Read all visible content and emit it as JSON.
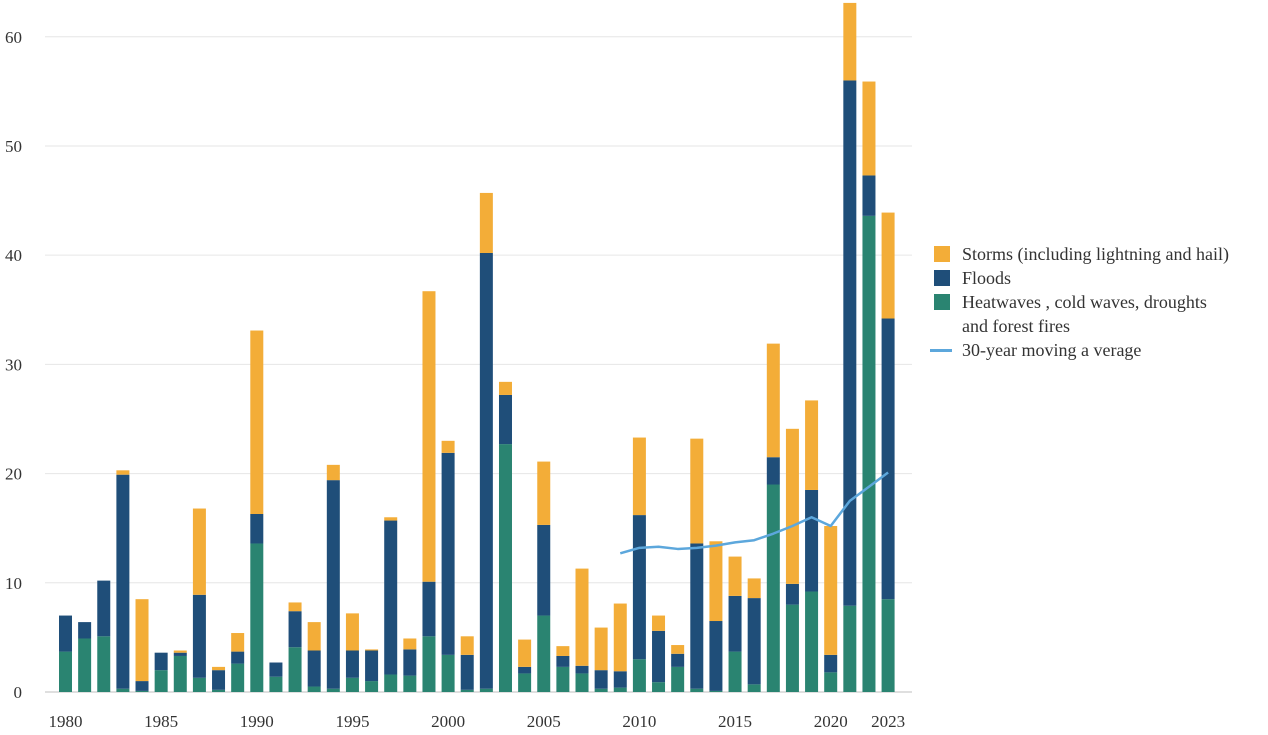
{
  "chart_data": {
    "type": "bar",
    "stacked": true,
    "ylim": [
      0,
      63
    ],
    "yticks": [
      0,
      10,
      20,
      30,
      40,
      50,
      60
    ],
    "x_tick_labels": [
      "1980",
      "1985",
      "1990",
      "1995",
      "2000",
      "2005",
      "2010",
      "2015",
      "2020",
      "2023"
    ],
    "years": [
      1980,
      1981,
      1982,
      1983,
      1984,
      1985,
      1986,
      1987,
      1988,
      1989,
      1990,
      1991,
      1992,
      1993,
      1994,
      1995,
      1996,
      1997,
      1998,
      1999,
      2000,
      2001,
      2002,
      2003,
      2004,
      2005,
      2006,
      2007,
      2008,
      2009,
      2010,
      2011,
      2012,
      2013,
      2014,
      2015,
      2016,
      2017,
      2018,
      2019,
      2020,
      2021,
      2022,
      2023
    ],
    "series": [
      {
        "key": "heat",
        "color": "#2a8471",
        "values": [
          3.7,
          4.9,
          5.1,
          0.3,
          0.1,
          2.0,
          3.3,
          1.3,
          0.2,
          2.6,
          13.6,
          1.4,
          4.1,
          0.5,
          0.3,
          1.3,
          1.0,
          1.6,
          1.5,
          5.1,
          3.4,
          0.2,
          0.3,
          22.7,
          1.7,
          7.0,
          2.3,
          1.7,
          0.3,
          0.4,
          3.0,
          0.9,
          2.3,
          0.3,
          0.1,
          3.7,
          0.7,
          19.0,
          8.0,
          9.2,
          1.8,
          7.9,
          43.6,
          8.5
        ]
      },
      {
        "key": "floods",
        "color": "#1f4e79",
        "values": [
          3.3,
          1.5,
          5.1,
          19.6,
          0.9,
          1.6,
          0.3,
          7.6,
          1.8,
          1.1,
          2.7,
          1.3,
          3.3,
          3.3,
          19.1,
          2.5,
          2.8,
          14.1,
          2.4,
          5.0,
          18.5,
          3.2,
          39.9,
          4.5,
          0.6,
          8.3,
          1.0,
          0.7,
          1.7,
          1.5,
          13.2,
          4.7,
          1.2,
          13.3,
          6.4,
          5.1,
          7.9,
          2.5,
          1.9,
          9.3,
          1.6,
          48.1,
          3.7,
          25.7
        ]
      },
      {
        "key": "storms",
        "color": "#f3ad38",
        "values": [
          0,
          0,
          0,
          0.4,
          7.5,
          0,
          0.2,
          7.9,
          0.3,
          1.7,
          16.8,
          0,
          0.8,
          2.6,
          1.4,
          3.4,
          0.1,
          0.3,
          1.0,
          26.6,
          1.1,
          1.7,
          5.5,
          1.2,
          2.5,
          5.8,
          0.9,
          8.9,
          3.9,
          6.2,
          7.1,
          1.4,
          0.8,
          9.6,
          7.3,
          3.6,
          1.8,
          10.4,
          14.2,
          8.2,
          11.8,
          7.1,
          8.6,
          9.7
        ]
      }
    ],
    "moving_average": {
      "color": "#5ca7dc",
      "years": [
        2009,
        2010,
        2011,
        2012,
        2013,
        2014,
        2015,
        2016,
        2017,
        2018,
        2019,
        2020,
        2021,
        2022,
        2023
      ],
      "values": [
        12.7,
        13.2,
        13.3,
        13.1,
        13.2,
        13.4,
        13.7,
        13.9,
        14.5,
        15.2,
        16.0,
        15.2,
        17.5,
        18.8,
        20.1
      ]
    }
  },
  "legend": [
    {
      "label": "Storms  (including lightning and hail)",
      "color": "#f3ad38",
      "kind": "box"
    },
    {
      "label": "Floods",
      "color": "#1f4e79",
      "kind": "box"
    },
    {
      "label": "Heatwaves , cold waves, droughts\nand forest fires",
      "color": "#2a8471",
      "kind": "box"
    },
    {
      "label": "30-year moving a  verage",
      "color": "#5ca7dc",
      "kind": "line"
    }
  ]
}
